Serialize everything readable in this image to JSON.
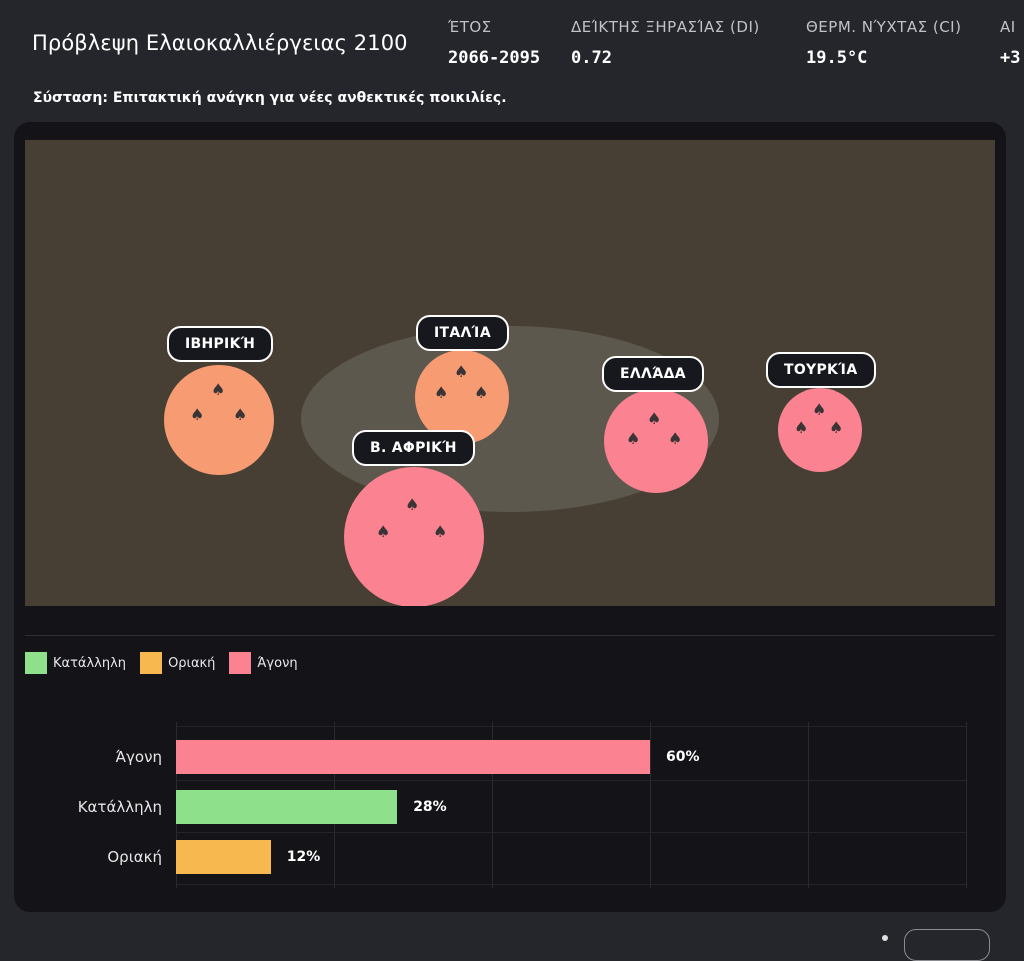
{
  "header": {
    "title": "Πρόβλεψη Ελαιοκαλλιέργειας 2100",
    "stats": [
      {
        "label": "ΈΤΟΣ",
        "value": "2066-2095"
      },
      {
        "label": "ΔΕΊΚΤΗΣ ΞΗΡΑΣΊΑΣ (DI)",
        "value": "0.72"
      },
      {
        "label": "ΘΕΡΜ. ΝΎΧΤΑΣ (CI)",
        "value": "19.5°C"
      },
      {
        "label": "ΑΙ",
        "value": "+3"
      }
    ],
    "recommendation": "Σύσταση: Επιτακτική ανάγκη για νέες ανθεκτικές ποικιλίες."
  },
  "map": {
    "regions": [
      {
        "label": "ΙΒΗΡΙΚΉ",
        "status": "Οριακή",
        "color": "#f79b72"
      },
      {
        "label": "ΙΤΑΛΊΑ",
        "status": "Οριακή",
        "color": "#f79b72"
      },
      {
        "label": "Β. ΑΦΡΙΚΉ",
        "status": "Άγονη",
        "color": "#fb8290"
      },
      {
        "label": "ΕΛΛΆΔΑ",
        "status": "Άγονη",
        "color": "#fb8290"
      },
      {
        "label": "ΤΟΥΡΚΊΑ",
        "status": "Άγονη",
        "color": "#fb8290"
      }
    ],
    "icon": "olive-tree-icon"
  },
  "legend": [
    {
      "label": "Κατάλληλη",
      "color": "#8fe08a"
    },
    {
      "label": "Οριακή",
      "color": "#f6b84f"
    },
    {
      "label": "Άγονη",
      "color": "#fb8290"
    }
  ],
  "chart_data": {
    "type": "bar",
    "orientation": "horizontal",
    "categories": [
      "Άγονη",
      "Κατάλληλη",
      "Οριακή"
    ],
    "values": [
      60,
      28,
      12
    ],
    "value_labels": [
      "60%",
      "28%",
      "12%"
    ],
    "colors": [
      "#fb8290",
      "#8fe08a",
      "#f6b84f"
    ],
    "xlim": [
      0,
      100
    ],
    "grid": true
  }
}
